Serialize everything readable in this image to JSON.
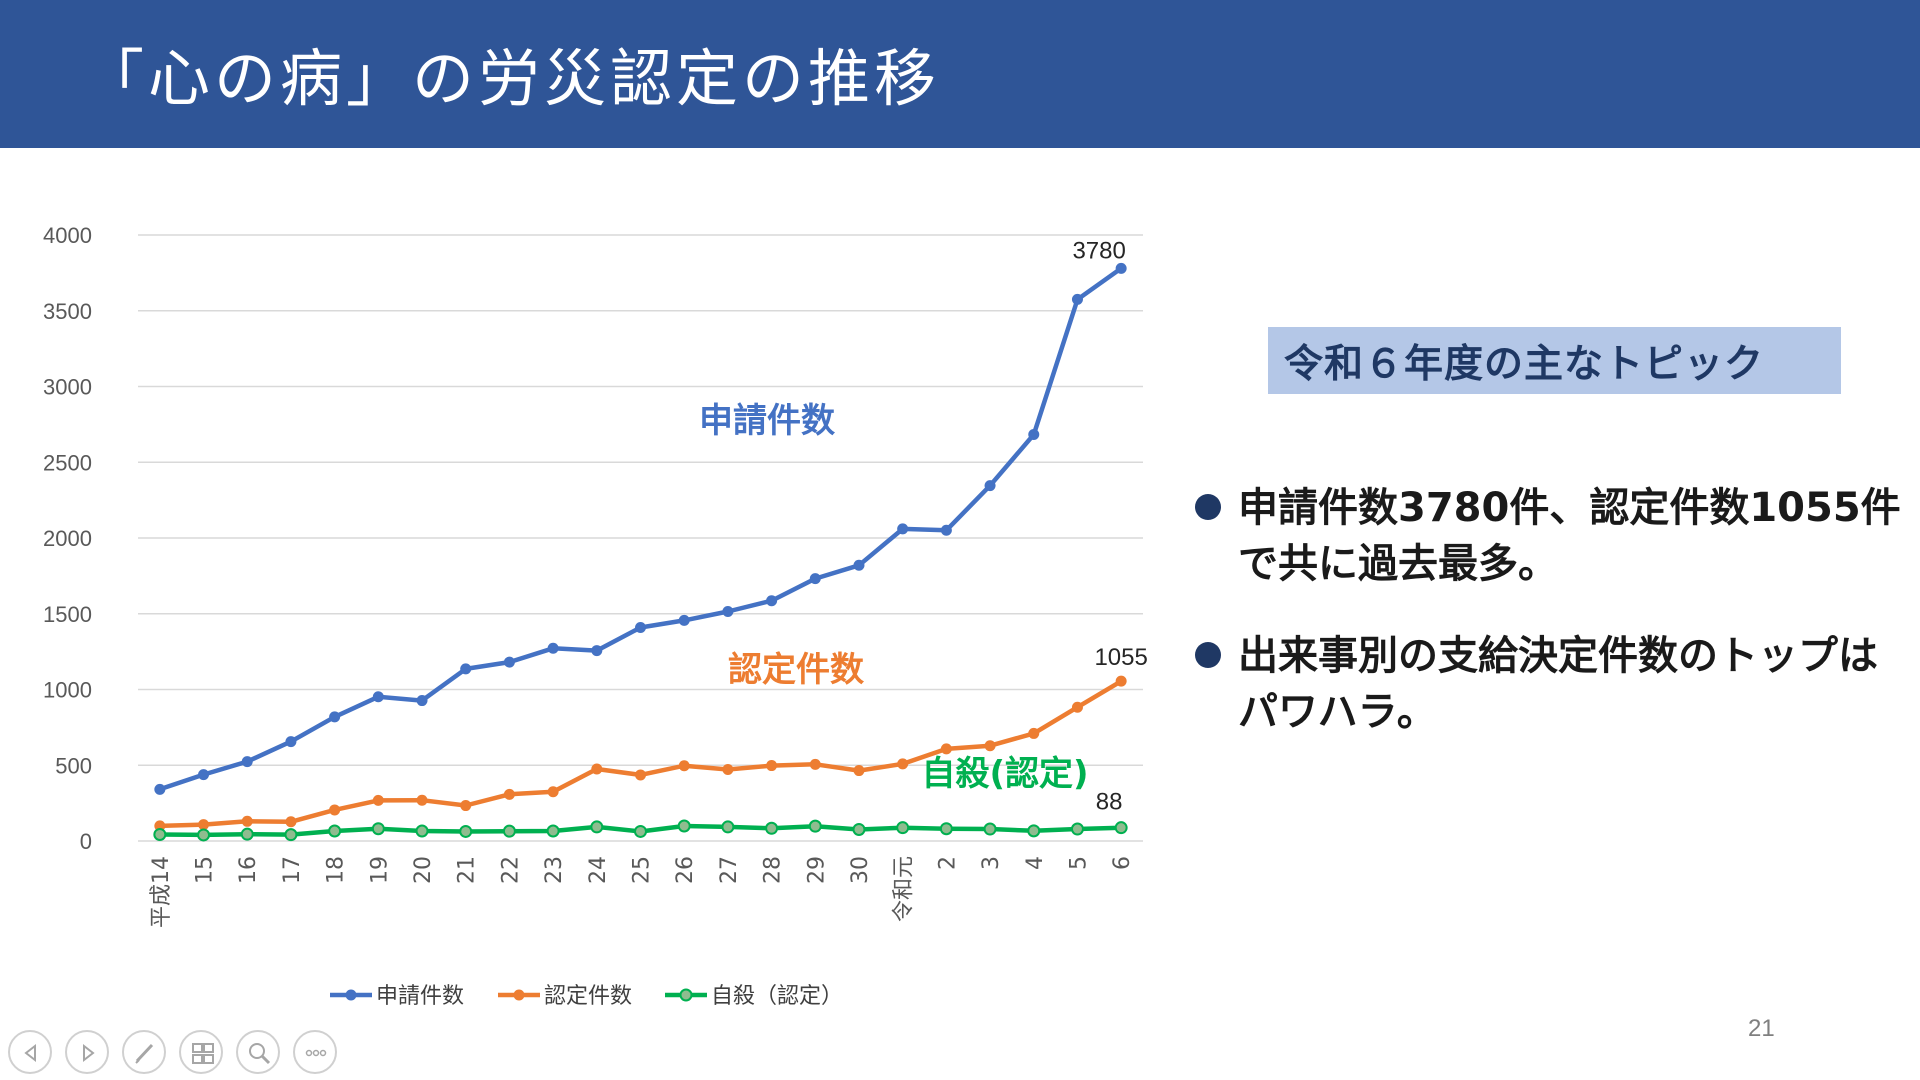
{
  "slide": {
    "title": "「心の病」の労災認定の推移",
    "page_number": "21"
  },
  "topic": {
    "heading": "令和６年度の主なトピック",
    "bullets": [
      "申請件数3780件、認定件数1055件で共に過去最多。",
      "出来事別の支給決定件数のトップはパワハラ。"
    ]
  },
  "colors": {
    "header": "#2F5597",
    "topic_box": "#B4C7E7",
    "application": "#4472C4",
    "approved": "#ED7D31",
    "suicide": "#00B050"
  },
  "nav": {
    "buttons": [
      "previous-icon",
      "next-icon",
      "pen-icon",
      "slides-icon",
      "zoom-icon",
      "more-icon"
    ]
  },
  "chart_data": {
    "type": "line",
    "title": "",
    "xlabel": "",
    "ylabel": "",
    "ylim": [
      0,
      4000
    ],
    "yticks": [
      "0",
      "500",
      "1000",
      "1500",
      "2000",
      "2500",
      "3000",
      "3500",
      "4000"
    ],
    "categories": [
      "平成14",
      "15",
      "16",
      "17",
      "18",
      "19",
      "20",
      "21",
      "22",
      "23",
      "24",
      "25",
      "26",
      "27",
      "28",
      "29",
      "30",
      "令和元",
      "2",
      "3",
      "4",
      "5",
      "6"
    ],
    "series": [
      {
        "name": "申請件数",
        "inline_label": "申請件数",
        "color": "#4472C4",
        "values": [
          341,
          438,
          524,
          656,
          819,
          952,
          927,
          1136,
          1181,
          1272,
          1257,
          1409,
          1456,
          1515,
          1586,
          1732,
          1820,
          2060,
          2051,
          2346,
          2683,
          3575,
          3780
        ],
        "end_label": "3780"
      },
      {
        "name": "認定件数",
        "inline_label": "認定件数",
        "color": "#ED7D31",
        "values": [
          100,
          108,
          130,
          127,
          205,
          268,
          269,
          234,
          308,
          325,
          475,
          436,
          497,
          472,
          498,
          506,
          465,
          509,
          608,
          629,
          710,
          883,
          1055
        ],
        "end_label": "1055"
      },
      {
        "name": "自殺（認定）",
        "inline_label": "自殺(認定)",
        "color": "#00B050",
        "values": [
          43,
          40,
          45,
          42,
          66,
          81,
          66,
          63,
          65,
          66,
          93,
          63,
          99,
          93,
          84,
          98,
          76,
          88,
          81,
          79,
          67,
          79,
          88
        ],
        "end_label": "88"
      }
    ],
    "legend": "bottom"
  }
}
